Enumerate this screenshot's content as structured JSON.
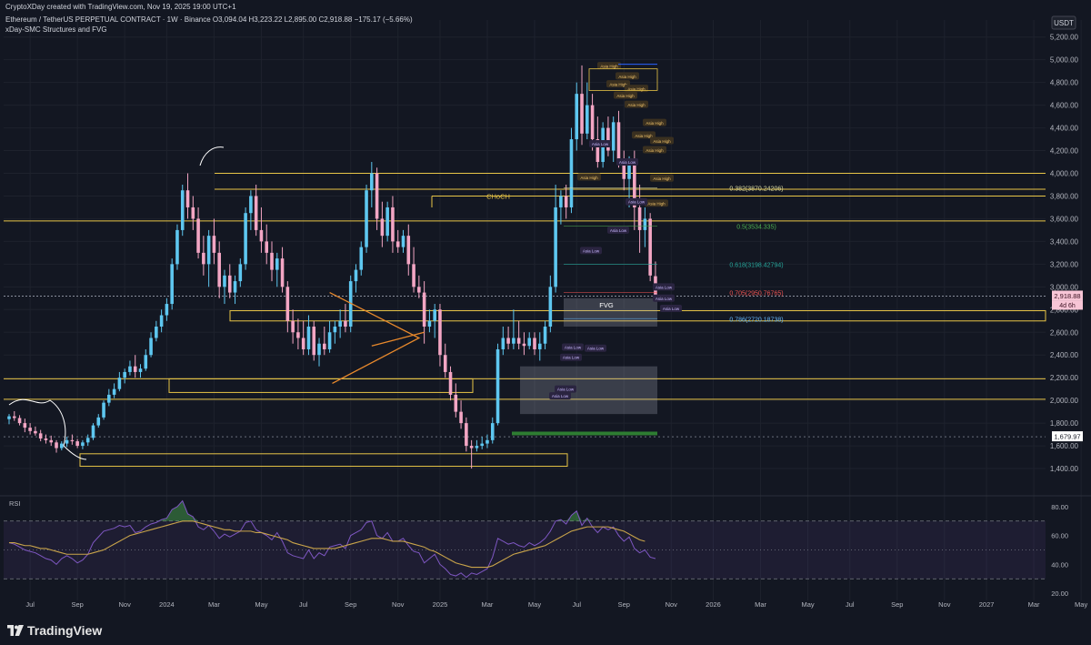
{
  "header": {
    "created_by": "CryptoXDay created with TradingView.com, Nov 19, 2025 19:00 UTC+1",
    "symbol_line": "Ethereum / TetherUS PERPETUAL CONTRACT · 1W · Binance  O3,094.04  H3,223.22  L2,895.00  C2,918.88  −175.17 (−5.66%)",
    "indicator": "xDay-SMC Structures and FVG"
  },
  "footer": {
    "brand": "TradingView"
  },
  "colors": {
    "background": "#131722",
    "up": "#5ec7f0",
    "down": "#f3a6c4",
    "level": "#e8c547",
    "grid": "#1e222d",
    "rsi": "#7e57c2",
    "rsi_ma": "#c9a44a",
    "axis_text": "#b2b5be"
  },
  "chart_data": [
    {
      "type": "candlestick",
      "currency": "USDT",
      "price_axis": {
        "range": [
          1200,
          5350
        ],
        "ticks": [
          "5,200.00",
          "5,000.00",
          "4,800.00",
          "4,600.00",
          "4,400.00",
          "4,200.00",
          "4,000.00",
          "3,800.00",
          "3,600.00",
          "3,400.00",
          "3,200.00",
          "3,000.00",
          "2,800.00",
          "2,600.00",
          "2,400.00",
          "2,200.00",
          "2,000.00",
          "1,800.00",
          "1,600.00",
          "1,400.00"
        ]
      },
      "time_axis": {
        "ticks": [
          "Jul",
          "Sep",
          "Nov",
          "2024",
          "Mar",
          "May",
          "Jul",
          "Sep",
          "Nov",
          "2025",
          "Mar",
          "May",
          "Jul",
          "Sep",
          "Nov",
          "2026",
          "Mar",
          "May",
          "Jul",
          "Sep",
          "Nov",
          "2027",
          "Mar",
          "May"
        ],
        "tick_weeks": [
          4,
          13,
          22,
          30,
          39,
          48,
          56,
          65,
          74,
          82,
          91,
          100,
          108,
          117,
          126,
          134,
          143,
          152,
          160,
          169,
          178,
          186,
          195,
          204
        ]
      },
      "ohlc_weekly": [
        [
          1835,
          1880,
          1790,
          1860
        ],
        [
          1860,
          1905,
          1820,
          1845
        ],
        [
          1845,
          1870,
          1780,
          1800
        ],
        [
          1800,
          1840,
          1720,
          1760
        ],
        [
          1760,
          1800,
          1700,
          1730
        ],
        [
          1730,
          1770,
          1690,
          1710
        ],
        [
          1710,
          1740,
          1640,
          1665
        ],
        [
          1665,
          1700,
          1620,
          1650
        ],
        [
          1650,
          1690,
          1600,
          1630
        ],
        [
          1630,
          1650,
          1540,
          1580
        ],
        [
          1580,
          1640,
          1560,
          1620
        ],
        [
          1620,
          1680,
          1590,
          1650
        ],
        [
          1650,
          1700,
          1610,
          1640
        ],
        [
          1640,
          1660,
          1580,
          1600
        ],
        [
          1600,
          1650,
          1570,
          1630
        ],
        [
          1630,
          1700,
          1600,
          1670
        ],
        [
          1670,
          1800,
          1650,
          1780
        ],
        [
          1780,
          1880,
          1760,
          1850
        ],
        [
          1850,
          2000,
          1830,
          1980
        ],
        [
          1980,
          2100,
          1950,
          2050
        ],
        [
          2050,
          2150,
          2020,
          2100
        ],
        [
          2100,
          2250,
          2080,
          2200
        ],
        [
          2200,
          2280,
          2150,
          2250
        ],
        [
          2250,
          2350,
          2220,
          2300
        ],
        [
          2300,
          2400,
          2200,
          2250
        ],
        [
          2250,
          2320,
          2200,
          2280
        ],
        [
          2280,
          2450,
          2260,
          2400
        ],
        [
          2400,
          2600,
          2380,
          2550
        ],
        [
          2550,
          2700,
          2520,
          2650
        ],
        [
          2650,
          2800,
          2600,
          2750
        ],
        [
          2750,
          2900,
          2700,
          2850
        ],
        [
          2850,
          3250,
          2800,
          3200
        ],
        [
          3200,
          3550,
          3150,
          3500
        ],
        [
          3500,
          3900,
          3450,
          3850
        ],
        [
          3850,
          4000,
          3600,
          3700
        ],
        [
          3700,
          3800,
          3500,
          3600
        ],
        [
          3600,
          3700,
          3250,
          3300
        ],
        [
          3300,
          3450,
          3100,
          3200
        ],
        [
          3200,
          3500,
          3000,
          3450
        ],
        [
          3450,
          3600,
          3200,
          3300
        ],
        [
          3300,
          3400,
          2900,
          3000
        ],
        [
          3000,
          3150,
          2850,
          3100
        ],
        [
          3100,
          3200,
          2900,
          2950
        ],
        [
          2950,
          3100,
          2850,
          3050
        ],
        [
          3050,
          3250,
          3000,
          3200
        ],
        [
          3200,
          3700,
          3150,
          3650
        ],
        [
          3650,
          3850,
          3500,
          3800
        ],
        [
          3800,
          3900,
          3450,
          3500
        ],
        [
          3500,
          3700,
          3300,
          3400
        ],
        [
          3400,
          3550,
          3200,
          3300
        ],
        [
          3300,
          3400,
          3050,
          3150
        ],
        [
          3150,
          3300,
          3000,
          3250
        ],
        [
          3250,
          3350,
          2950,
          3000
        ],
        [
          3000,
          3050,
          2600,
          2700
        ],
        [
          2700,
          2800,
          2500,
          2600
        ],
        [
          2600,
          2720,
          2450,
          2550
        ],
        [
          2550,
          2700,
          2400,
          2450
        ],
        [
          2450,
          2750,
          2400,
          2650
        ],
        [
          2650,
          2700,
          2350,
          2400
        ],
        [
          2400,
          2550,
          2300,
          2500
        ],
        [
          2500,
          2650,
          2400,
          2450
        ],
        [
          2450,
          2700,
          2420,
          2600
        ],
        [
          2600,
          2700,
          2500,
          2650
        ],
        [
          2650,
          2800,
          2550,
          2700
        ],
        [
          2700,
          2850,
          2600,
          2650
        ],
        [
          2650,
          3100,
          2600,
          3050
        ],
        [
          3050,
          3200,
          2950,
          3150
        ],
        [
          3150,
          3400,
          3100,
          3350
        ],
        [
          3350,
          3900,
          3300,
          3850
        ],
        [
          3850,
          4100,
          3700,
          4000
        ],
        [
          4000,
          4050,
          3500,
          3600
        ],
        [
          3600,
          3750,
          3350,
          3450
        ],
        [
          3450,
          3750,
          3400,
          3700
        ],
        [
          3700,
          3800,
          3300,
          3400
        ],
        [
          3400,
          3500,
          3300,
          3350
        ],
        [
          3350,
          3500,
          3300,
          3450
        ],
        [
          3450,
          3550,
          3100,
          3200
        ],
        [
          3200,
          3350,
          2950,
          3000
        ],
        [
          3000,
          3100,
          2900,
          2950
        ],
        [
          2950,
          3050,
          2500,
          2650
        ],
        [
          2650,
          2800,
          2600,
          2700
        ],
        [
          2700,
          2850,
          2550,
          2800
        ],
        [
          2800,
          2850,
          2300,
          2400
        ],
        [
          2400,
          2500,
          2200,
          2250
        ],
        [
          2250,
          2300,
          2000,
          2050
        ],
        [
          2050,
          2150,
          1850,
          1900
        ],
        [
          1900,
          2000,
          1750,
          1800
        ],
        [
          1800,
          1850,
          1550,
          1600
        ],
        [
          1600,
          1650,
          1400,
          1580
        ],
        [
          1580,
          1650,
          1550,
          1600
        ],
        [
          1600,
          1680,
          1570,
          1620
        ],
        [
          1620,
          1700,
          1580,
          1650
        ],
        [
          1650,
          1850,
          1620,
          1800
        ],
        [
          1800,
          2500,
          1780,
          2450
        ],
        [
          2450,
          2650,
          2400,
          2550
        ],
        [
          2550,
          2650,
          2450,
          2500
        ],
        [
          2500,
          2800,
          2450,
          2550
        ],
        [
          2550,
          2700,
          2450,
          2500
        ],
        [
          2500,
          2600,
          2400,
          2480
        ],
        [
          2480,
          2600,
          2450,
          2550
        ],
        [
          2550,
          2600,
          2400,
          2450
        ],
        [
          2450,
          2600,
          2350,
          2500
        ],
        [
          2500,
          2700,
          2450,
          2650
        ],
        [
          2650,
          3100,
          2600,
          3000
        ],
        [
          3000,
          3900,
          2950,
          3700
        ],
        [
          3700,
          3850,
          3550,
          3800
        ],
        [
          3800,
          3900,
          3600,
          3700
        ],
        [
          3700,
          4400,
          3650,
          4300
        ],
        [
          4300,
          4800,
          4200,
          4700
        ],
        [
          4700,
          4950,
          4250,
          4350
        ],
        [
          4350,
          4800,
          4300,
          4600
        ],
        [
          4600,
          4700,
          4200,
          4300
        ],
        [
          4300,
          4500,
          4050,
          4100
        ],
        [
          4100,
          4450,
          4050,
          4400
        ],
        [
          4400,
          4500,
          4150,
          4200
        ],
        [
          4200,
          4500,
          4100,
          4450
        ],
        [
          4450,
          4550,
          4050,
          4100
        ],
        [
          4100,
          4200,
          3850,
          3950
        ],
        [
          3950,
          4150,
          3700,
          4100
        ],
        [
          4100,
          4200,
          3500,
          3700
        ],
        [
          3700,
          3900,
          3300,
          3500
        ],
        [
          3500,
          3700,
          3350,
          3600
        ],
        [
          3600,
          3650,
          3050,
          3100
        ],
        [
          3094.04,
          3223.22,
          2895,
          2918.88
        ]
      ],
      "last_price": "2,918.88",
      "countdown": "4d 6h",
      "marked_price": "1,679.97",
      "fib_levels": [
        {
          "label": "0.382(3870.24206)",
          "price": 3870.24,
          "color": "#d9d9a0"
        },
        {
          "label": "0.5(3534.335)",
          "price": 3534.34,
          "color": "#4caf50"
        },
        {
          "label": "0.618(3198.42794)",
          "price": 3198.43,
          "color": "#26a69a"
        },
        {
          "label": "0.705(2950.76765)",
          "price": 2950.77,
          "color": "#ef5350"
        },
        {
          "label": "0.786(2720.18738)",
          "price": 2720.19,
          "color": "#64b5f6"
        }
      ],
      "structure_labels": [
        "CHoCH",
        "FVG"
      ],
      "session_labels": [
        "Asia High",
        "Asia Low"
      ]
    },
    {
      "type": "line",
      "title": "RSI",
      "range": [
        15,
        85
      ],
      "ticks": [
        "80.00",
        "60.00",
        "40.00",
        "20.00"
      ],
      "bands": [
        70,
        50,
        30
      ],
      "series": [
        {
          "values": [
            55,
            54,
            52,
            50,
            49,
            48,
            46,
            44,
            43,
            40,
            44,
            46,
            44,
            41,
            43,
            47,
            55,
            59,
            63,
            64,
            65,
            67,
            66,
            67,
            62,
            63,
            66,
            68,
            69,
            71,
            72,
            78,
            80,
            84,
            75,
            73,
            66,
            64,
            67,
            63,
            58,
            61,
            59,
            61,
            63,
            69,
            70,
            64,
            62,
            60,
            57,
            62,
            56,
            48,
            46,
            45,
            44,
            50,
            44,
            48,
            46,
            52,
            53,
            54,
            51,
            60,
            62,
            64,
            69,
            70,
            60,
            58,
            62,
            56,
            56,
            58,
            53,
            49,
            48,
            41,
            44,
            47,
            40,
            37,
            33,
            32,
            34,
            31,
            34,
            33,
            35,
            37,
            45,
            58,
            56,
            54,
            55,
            53,
            52,
            55,
            53,
            55,
            58,
            63,
            70,
            71,
            68,
            74,
            77,
            67,
            72,
            66,
            62,
            66,
            64,
            66,
            60,
            56,
            59,
            51,
            48,
            50,
            45,
            44
          ]
        },
        {
          "values": [
            55,
            55,
            54,
            53,
            53,
            52,
            51,
            51,
            50,
            49,
            48,
            47,
            47,
            47,
            47,
            47,
            48,
            49,
            50,
            52,
            54,
            56,
            58,
            60,
            61,
            62,
            63,
            64,
            65,
            66,
            67,
            68,
            69,
            70,
            70,
            70,
            69,
            68,
            67,
            66,
            65,
            64,
            64,
            63,
            63,
            63,
            63,
            62,
            62,
            61,
            60,
            59,
            58,
            57,
            55,
            54,
            53,
            52,
            51,
            51,
            51,
            51,
            51,
            52,
            53,
            54,
            55,
            56,
            57,
            58,
            58,
            58,
            57,
            56,
            56,
            56,
            55,
            54,
            53,
            52,
            50,
            49,
            47,
            45,
            43,
            41,
            40,
            39,
            38,
            38,
            38,
            38,
            39,
            41,
            43,
            45,
            47,
            48,
            49,
            50,
            51,
            52,
            53,
            55,
            57,
            59,
            61,
            63,
            64,
            65,
            66,
            66,
            66,
            66,
            66,
            65,
            64,
            63,
            61,
            59,
            57,
            56
          ]
        }
      ]
    }
  ]
}
